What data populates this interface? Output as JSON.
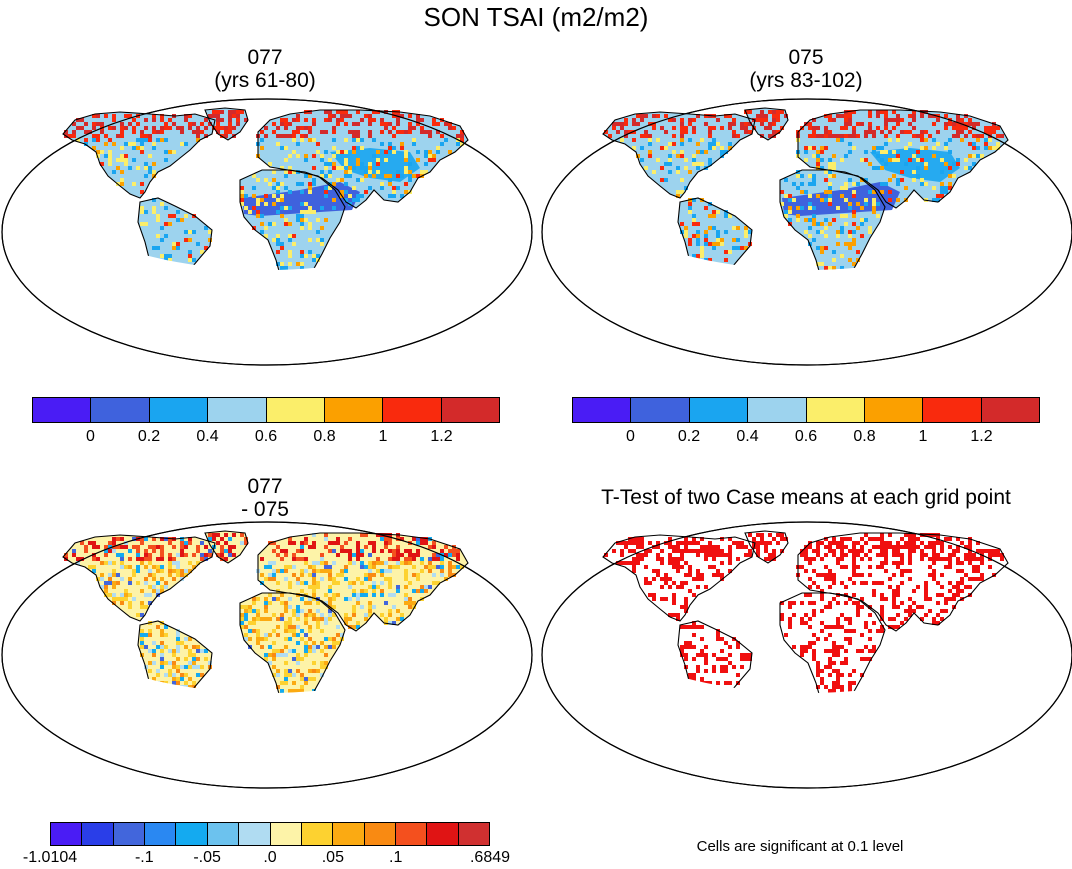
{
  "main_title": "SON TSAI (m2/m2)",
  "panels": [
    {
      "id": "p1",
      "title_line1": "077",
      "title_line2": "(yrs 61-80)"
    },
    {
      "id": "p2",
      "title_line1": "075",
      "title_line2": "(yrs 83-102)"
    },
    {
      "id": "p3",
      "title_line1": "077",
      "title_line2": "- 075"
    },
    {
      "id": "p4",
      "title_line1": "T-Test of two Case means at each grid point",
      "title_line2": ""
    }
  ],
  "colorbar_abs": {
    "colors": [
      "#4a1cf5",
      "#3f62dd",
      "#1aa5f0",
      "#9dd3ee",
      "#fbee6a",
      "#fba000",
      "#f92a0d",
      "#d32a2a"
    ],
    "tick_labels": [
      "0",
      "0.2",
      "0.4",
      "0.6",
      "0.8",
      "1",
      "1.2"
    ]
  },
  "colorbar_diff": {
    "colors": [
      "#4a1cf5",
      "#2a3ee8",
      "#4266dc",
      "#2a88f2",
      "#14aaf0",
      "#6cc2ee",
      "#b0dcf2",
      "#fdf3a8",
      "#fdd230",
      "#fbaa12",
      "#f98a12",
      "#f4501e",
      "#e01414",
      "#d03030"
    ],
    "tick_labels": [
      "-1.0104",
      "-.1",
      "-.05",
      ".0",
      ".05",
      ".1",
      ".6849"
    ]
  },
  "significance_note": "Cells are significant at 0.1 level",
  "legend_colors": {
    "land_default_abs": "#9dd3ee",
    "land_default_diff": "#fdf3a8",
    "significant_cell": "#f01010",
    "coast": "#000000"
  }
}
